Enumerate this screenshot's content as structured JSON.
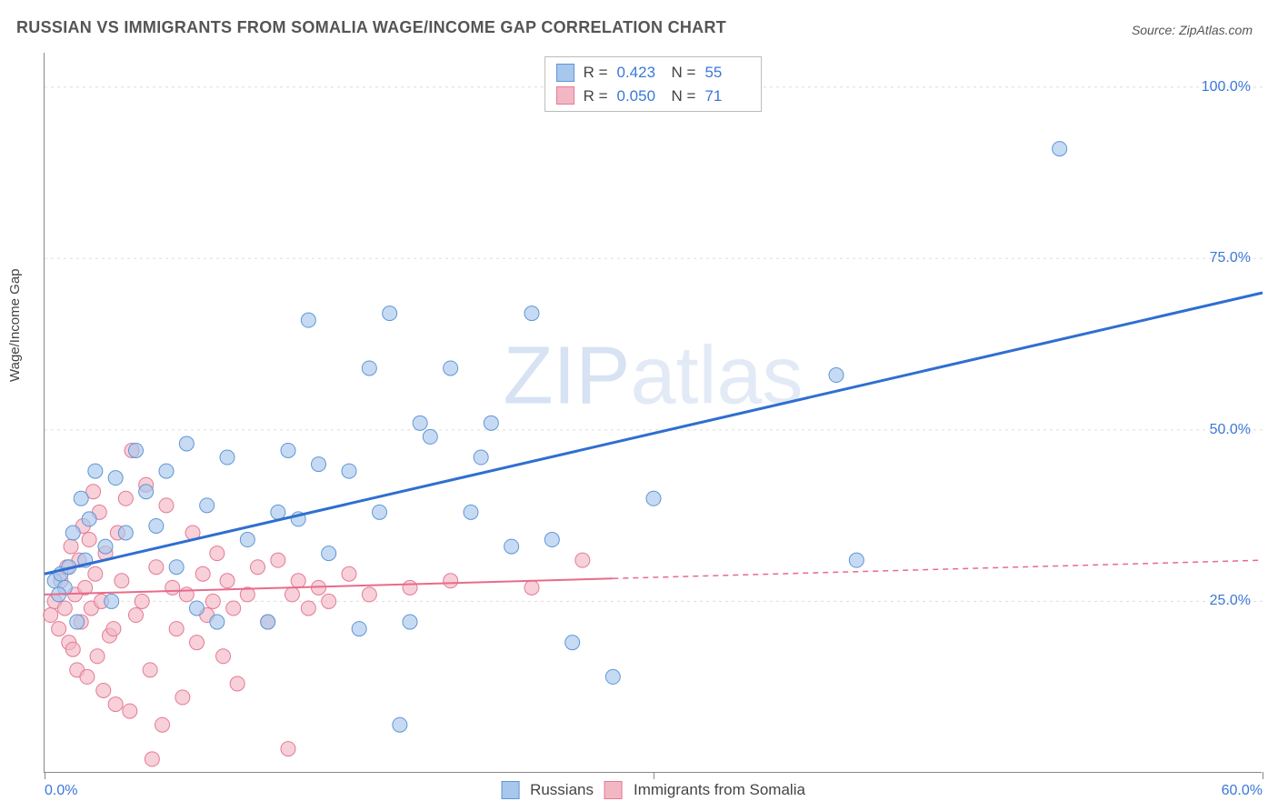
{
  "header": {
    "title": "RUSSIAN VS IMMIGRANTS FROM SOMALIA WAGE/INCOME GAP CORRELATION CHART",
    "source": "Source: ZipAtlas.com"
  },
  "y_axis": {
    "label": "Wage/Income Gap"
  },
  "watermark": {
    "bold": "ZIP",
    "thin": "atlas"
  },
  "chart": {
    "type": "scatter",
    "xlim": [
      0,
      60
    ],
    "ylim": [
      0,
      105
    ],
    "x_ticks": [
      0,
      30,
      60
    ],
    "x_tick_labels": [
      "0.0%",
      "",
      "60.0%"
    ],
    "y_gridlines": [
      25,
      50,
      75,
      100
    ],
    "y_labels": [
      "25.0%",
      "50.0%",
      "75.0%",
      "100.0%"
    ],
    "grid_color": "#dddddd",
    "axis_color": "#888888",
    "series": [
      {
        "key": "russians",
        "label": "Russians",
        "stats": {
          "R": "0.423",
          "N": "55"
        },
        "color_fill": "#a8c7ec",
        "color_stroke": "#5f96d6",
        "line_color": "#2e6fd1",
        "line_width": 3,
        "marker_radius": 8,
        "trend": {
          "x1": 0,
          "y1": 29,
          "x2": 60,
          "y2": 70,
          "solid_until_x": 60
        },
        "points": [
          [
            0.5,
            28
          ],
          [
            0.8,
            29
          ],
          [
            1.0,
            27
          ],
          [
            1.2,
            30
          ],
          [
            1.4,
            35
          ],
          [
            1.6,
            22
          ],
          [
            1.8,
            40
          ],
          [
            2.0,
            31
          ],
          [
            2.2,
            37
          ],
          [
            2.5,
            44
          ],
          [
            3.0,
            33
          ],
          [
            3.3,
            25
          ],
          [
            3.5,
            43
          ],
          [
            4.0,
            35
          ],
          [
            4.5,
            47
          ],
          [
            5.0,
            41
          ],
          [
            5.5,
            36
          ],
          [
            6.0,
            44
          ],
          [
            6.5,
            30
          ],
          [
            7.0,
            48
          ],
          [
            7.5,
            24
          ],
          [
            8.0,
            39
          ],
          [
            8.5,
            22
          ],
          [
            9.0,
            46
          ],
          [
            10.0,
            34
          ],
          [
            11.0,
            22
          ],
          [
            11.5,
            38
          ],
          [
            12.0,
            47
          ],
          [
            12.5,
            37
          ],
          [
            13.0,
            66
          ],
          [
            13.5,
            45
          ],
          [
            14.0,
            32
          ],
          [
            15.0,
            44
          ],
          [
            15.5,
            21
          ],
          [
            16.0,
            59
          ],
          [
            16.5,
            38
          ],
          [
            17.0,
            67
          ],
          [
            17.5,
            7
          ],
          [
            18.0,
            22
          ],
          [
            18.5,
            51
          ],
          [
            19.0,
            49
          ],
          [
            20.0,
            59
          ],
          [
            21.0,
            38
          ],
          [
            21.5,
            46
          ],
          [
            22.0,
            51
          ],
          [
            23.0,
            33
          ],
          [
            24.0,
            67
          ],
          [
            25.0,
            34
          ],
          [
            26.0,
            19
          ],
          [
            28.0,
            14
          ],
          [
            30.0,
            40
          ],
          [
            39.0,
            58
          ],
          [
            40.0,
            31
          ],
          [
            50.0,
            91
          ],
          [
            0.7,
            26
          ]
        ]
      },
      {
        "key": "somalia",
        "label": "Immigrants from Somalia",
        "stats": {
          "R": "0.050",
          "N": "71"
        },
        "color_fill": "#f3b7c4",
        "color_stroke": "#e57a95",
        "line_color": "#e86b8a",
        "line_width": 2,
        "marker_radius": 8,
        "trend": {
          "x1": 0,
          "y1": 26,
          "x2": 60,
          "y2": 31,
          "solid_until_x": 28
        },
        "points": [
          [
            0.3,
            23
          ],
          [
            0.5,
            25
          ],
          [
            0.7,
            21
          ],
          [
            0.8,
            28
          ],
          [
            1.0,
            24
          ],
          [
            1.1,
            30
          ],
          [
            1.2,
            19
          ],
          [
            1.3,
            33
          ],
          [
            1.4,
            18
          ],
          [
            1.5,
            26
          ],
          [
            1.6,
            15
          ],
          [
            1.7,
            31
          ],
          [
            1.8,
            22
          ],
          [
            1.9,
            36
          ],
          [
            2.0,
            27
          ],
          [
            2.1,
            14
          ],
          [
            2.2,
            34
          ],
          [
            2.3,
            24
          ],
          [
            2.4,
            41
          ],
          [
            2.5,
            29
          ],
          [
            2.6,
            17
          ],
          [
            2.7,
            38
          ],
          [
            2.8,
            25
          ],
          [
            2.9,
            12
          ],
          [
            3.0,
            32
          ],
          [
            3.2,
            20
          ],
          [
            3.4,
            21
          ],
          [
            3.5,
            10
          ],
          [
            3.6,
            35
          ],
          [
            3.8,
            28
          ],
          [
            4.0,
            40
          ],
          [
            4.2,
            9
          ],
          [
            4.3,
            47
          ],
          [
            4.5,
            23
          ],
          [
            4.8,
            25
          ],
          [
            5.0,
            42
          ],
          [
            5.2,
            15
          ],
          [
            5.3,
            2
          ],
          [
            5.5,
            30
          ],
          [
            5.8,
            7
          ],
          [
            6.0,
            39
          ],
          [
            6.3,
            27
          ],
          [
            6.5,
            21
          ],
          [
            6.8,
            11
          ],
          [
            7.0,
            26
          ],
          [
            7.3,
            35
          ],
          [
            7.5,
            19
          ],
          [
            7.8,
            29
          ],
          [
            8.0,
            23
          ],
          [
            8.3,
            25
          ],
          [
            8.5,
            32
          ],
          [
            8.8,
            17
          ],
          [
            9.0,
            28
          ],
          [
            9.3,
            24
          ],
          [
            9.5,
            13
          ],
          [
            10.0,
            26
          ],
          [
            10.5,
            30
          ],
          [
            11.0,
            22
          ],
          [
            11.5,
            31
          ],
          [
            12.0,
            3.5
          ],
          [
            12.2,
            26
          ],
          [
            12.5,
            28
          ],
          [
            13.0,
            24
          ],
          [
            13.5,
            27
          ],
          [
            14.0,
            25
          ],
          [
            15.0,
            29
          ],
          [
            16.0,
            26
          ],
          [
            18.0,
            27
          ],
          [
            20.0,
            28
          ],
          [
            24.0,
            27
          ],
          [
            26.5,
            31
          ]
        ]
      }
    ]
  },
  "legend_bottom": {
    "items": [
      {
        "label": "Russians",
        "fill": "#a8c7ec",
        "stroke": "#5f96d6"
      },
      {
        "label": "Immigrants from Somalia",
        "fill": "#f3b7c4",
        "stroke": "#e57a95"
      }
    ]
  }
}
